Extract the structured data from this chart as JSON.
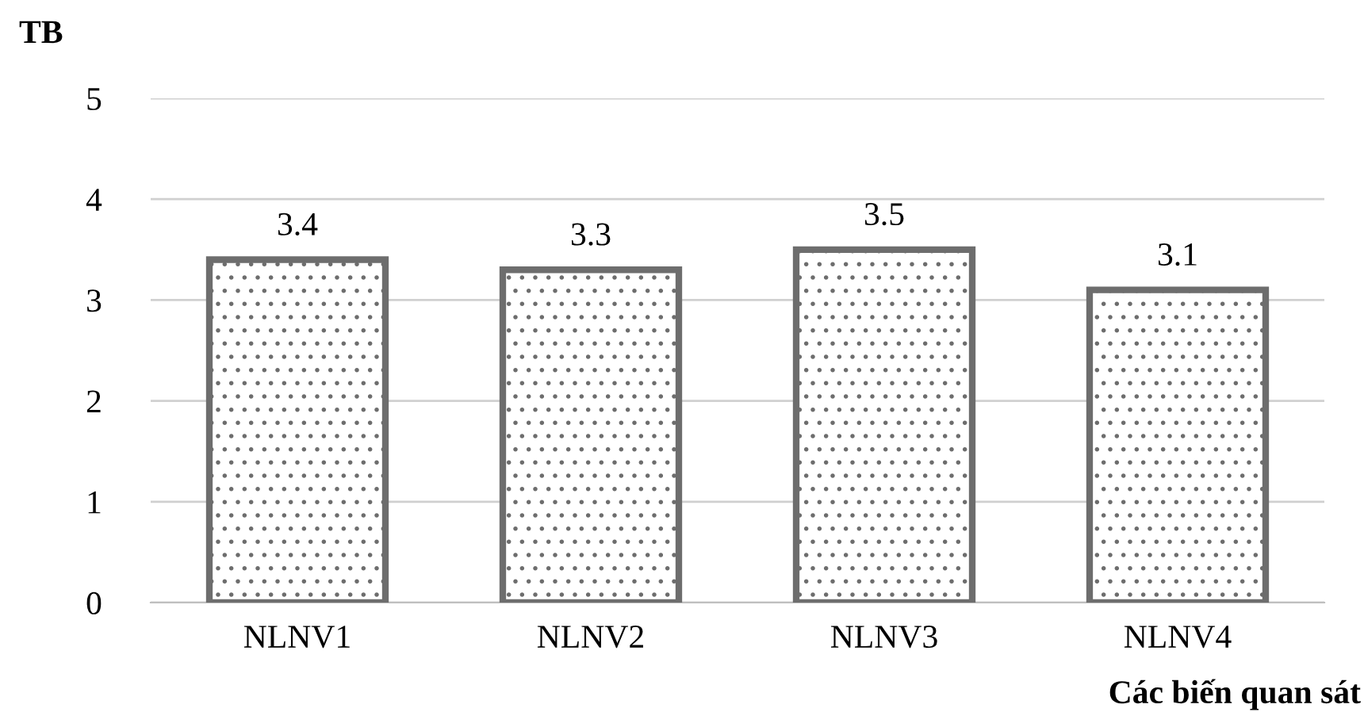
{
  "chart_data": {
    "type": "bar",
    "ylabel": "TB",
    "xlabel": "Các biến quan sát",
    "categories": [
      "NLNV1",
      "NLNV2",
      "NLNV3",
      "NLNV4"
    ],
    "values": [
      3.4,
      3.3,
      3.5,
      3.1
    ],
    "color": "#6d6d6d",
    "ylim": [
      0,
      5
    ],
    "yticks": [
      0,
      1,
      2,
      3,
      4,
      5
    ],
    "grid": "y",
    "data_labels": true
  }
}
